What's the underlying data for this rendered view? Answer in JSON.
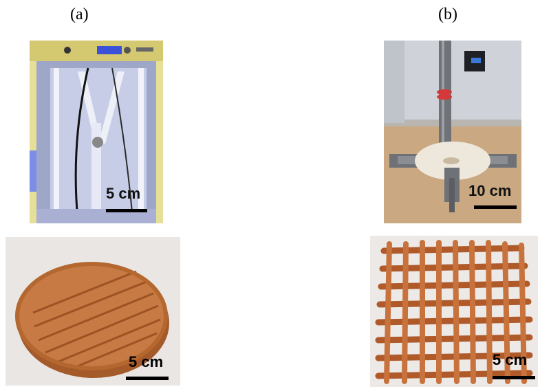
{
  "panels": [
    {
      "label": "(a)"
    },
    {
      "label": "(b)"
    }
  ],
  "photos": {
    "a_top": {
      "scale_label": "5 cm"
    },
    "a_bottom": {
      "scale_label": "5 cm"
    },
    "b_top": {
      "scale_label": "10 cm"
    },
    "b_bottom": {
      "scale_label": "5 cm"
    }
  },
  "colors": {
    "frame_yellow": "#d8d07a",
    "clay": "#c87a44",
    "clay_dark": "#a55a2a",
    "table": "#c9a882",
    "wall": "#cfd2d8"
  }
}
